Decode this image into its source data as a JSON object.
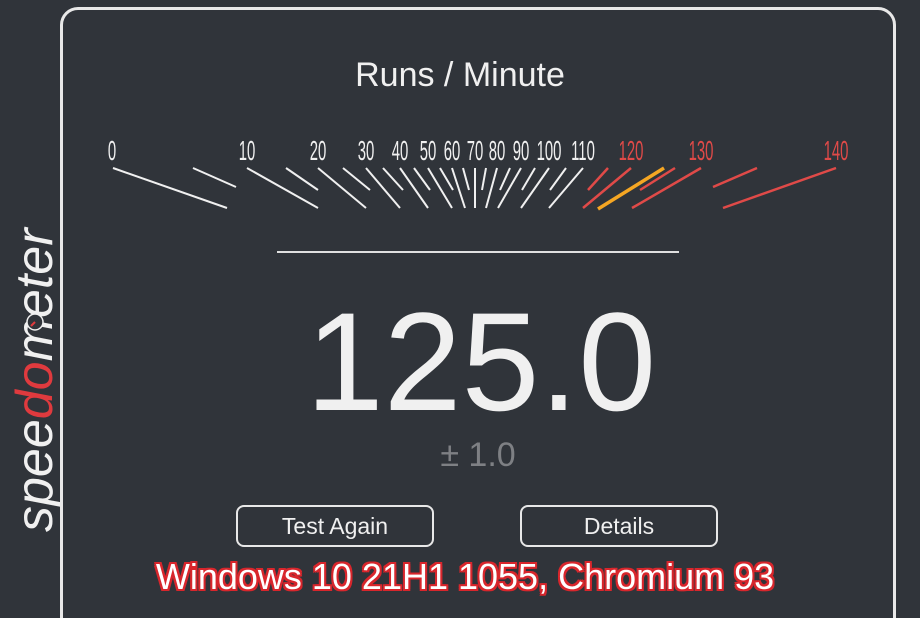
{
  "logo": {
    "text_prefix": "spee",
    "text_highlight": "do",
    "text_suffix": "meter",
    "accent_color": "#e03a3e",
    "icon": "speedometer-icon"
  },
  "gauge": {
    "title": "Runs / Minute",
    "tick_labels": [
      "0",
      "10",
      "20",
      "30",
      "40",
      "50",
      "60",
      "70",
      "80",
      "90",
      "100",
      "110",
      "120",
      "130",
      "140"
    ],
    "danger_from": 120,
    "needle_value": 125.0,
    "tick_color": "#f0f0f0",
    "danger_color": "#e04a48",
    "needle_color": "#f5a623"
  },
  "result": {
    "score": "125.0",
    "deviation": "± 1.0"
  },
  "buttons": {
    "test_again": "Test Again",
    "details": "Details"
  },
  "caption": {
    "text": "Windows 10 21H1 1055, Chromium 93",
    "outline_color": "#d8262c"
  }
}
